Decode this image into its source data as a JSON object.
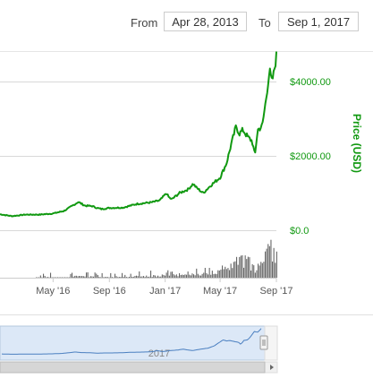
{
  "range": {
    "from_label": "From",
    "from_value": "Apr 28, 2013",
    "to_label": "To",
    "to_value": "Sep 1, 2017"
  },
  "chart_data": {
    "type": "line",
    "title": "",
    "xlabel": "",
    "ylabel": "Price (USD)",
    "y_ticks": [
      "$4000.00",
      "$2000.00",
      "$0.0"
    ],
    "y_tick_values": [
      4000,
      2000,
      0
    ],
    "ylim": [
      0,
      4800
    ],
    "x_tick_labels": [
      "May '16",
      "Sep '16",
      "Jan '17",
      "May '17",
      "Sep '17"
    ],
    "x_tick_dates": [
      "2016-05-01",
      "2016-09-01",
      "2017-01-01",
      "2017-05-01",
      "2017-09-01"
    ],
    "xlim": [
      "2016-01-06",
      "2017-09-01"
    ],
    "grid": true,
    "line_color": "#119911",
    "volume_color": "#666666",
    "navigator_label": "2017",
    "navigator_fill": "#dce8f7",
    "navigator_line_color": "#4a7fc0",
    "series": [
      {
        "x": [
          "2016-01-06",
          "2016-02-01",
          "2016-03-01",
          "2016-04-01",
          "2016-05-01",
          "2016-05-25",
          "2016-06-15",
          "2016-06-25",
          "2016-07-10",
          "2016-07-25",
          "2016-08-05",
          "2016-08-15",
          "2016-09-01",
          "2016-10-01",
          "2016-11-01",
          "2016-12-01",
          "2016-12-20",
          "2017-01-04",
          "2017-01-08",
          "2017-01-15",
          "2017-02-01",
          "2017-02-20",
          "2017-03-03",
          "2017-03-10",
          "2017-03-25",
          "2017-04-10",
          "2017-05-01",
          "2017-05-15",
          "2017-05-25",
          "2017-06-05",
          "2017-06-12",
          "2017-06-20",
          "2017-07-01",
          "2017-07-10",
          "2017-07-16",
          "2017-07-22",
          "2017-08-01",
          "2017-08-08",
          "2017-08-12",
          "2017-08-17",
          "2017-08-22",
          "2017-08-26",
          "2017-09-01"
        ],
        "y": [
          430,
          380,
          420,
          420,
          450,
          520,
          680,
          760,
          660,
          650,
          600,
          570,
          600,
          610,
          710,
          750,
          800,
          1000,
          900,
          830,
          1000,
          1100,
          1250,
          1150,
          1000,
          1200,
          1420,
          1800,
          2300,
          2800,
          2600,
          2700,
          2500,
          2400,
          2000,
          2700,
          2800,
          3400,
          3800,
          4300,
          4000,
          4200,
          4700
        ]
      }
    ]
  }
}
